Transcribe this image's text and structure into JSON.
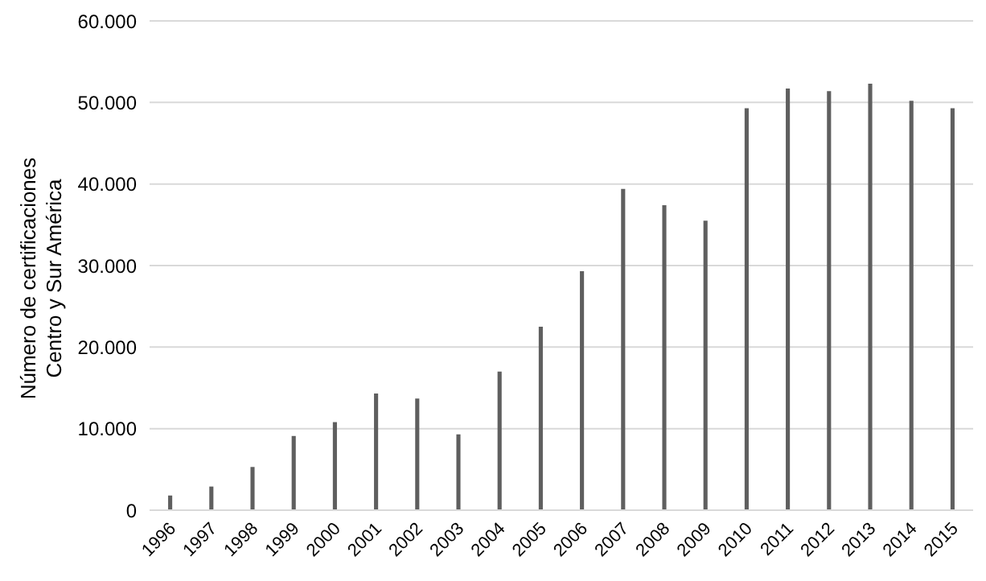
{
  "chart_data": {
    "type": "bar",
    "ylabel": "Número  de certificaciones\nCentro y Sur América",
    "categories": [
      "1996",
      "1997",
      "1998",
      "1999",
      "2000",
      "2001",
      "2002",
      "2003",
      "2004",
      "2005",
      "2006",
      "2007",
      "2008",
      "2009",
      "2010",
      "2011",
      "2012",
      "2013",
      "2014",
      "2015"
    ],
    "values": [
      1800,
      2900,
      5300,
      9100,
      10800,
      14300,
      13700,
      9300,
      17000,
      22500,
      29300,
      39400,
      37400,
      35500,
      49300,
      51700,
      51400,
      52300,
      50200,
      49300
    ],
    "color": "#5f5f5f",
    "ylim": [
      0,
      60000
    ],
    "yticks": [
      0,
      {
        "value": 10000,
        "label": "10.000"
      },
      {
        "value": 20000,
        "label": "20.000"
      },
      {
        "value": 30000,
        "label": "30.000"
      },
      {
        "value": 40000,
        "label": "40.000"
      },
      {
        "value": 50000,
        "label": "50.000"
      },
      {
        "value": 60000,
        "label": "60.000"
      }
    ],
    "grid": "y"
  }
}
